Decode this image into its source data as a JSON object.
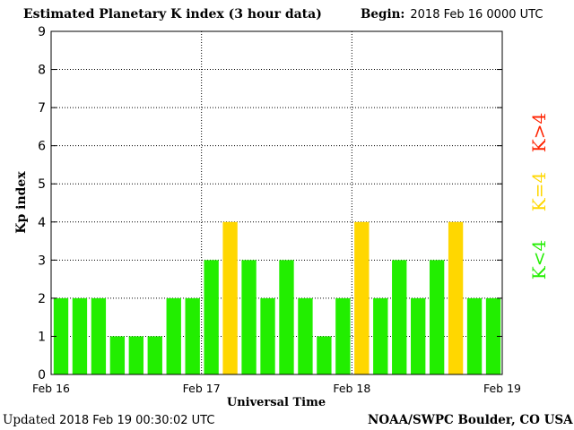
{
  "header": {
    "title": "Estimated Planetary K index (3 hour data)",
    "begin_label": "Begin:",
    "begin_value": "2018 Feb 16 0000 UTC"
  },
  "footer": {
    "updated_label": "Updated",
    "updated_value": "2018 Feb 19 00:30:02 UTC",
    "credit": "NOAA/SWPC Boulder, CO USA"
  },
  "legend": [
    {
      "label": "K>4",
      "color": "#ff2200"
    },
    {
      "label": "K=4",
      "color": "#ffd700"
    },
    {
      "label": "K<4",
      "color": "#22ee00"
    }
  ],
  "chart_data": {
    "type": "bar",
    "title": "Estimated Planetary K index (3 hour data)",
    "xlabel": "Universal Time",
    "ylabel": "Kp index",
    "ylim": [
      0,
      9
    ],
    "yticks": [
      "0",
      "1",
      "2",
      "3",
      "4",
      "5",
      "6",
      "7",
      "8",
      "9"
    ],
    "xticks": [
      "Feb 16",
      "Feb 17",
      "Feb 18",
      "Feb 19"
    ],
    "grid": true,
    "colors": {
      "below": "#22ee00",
      "equal": "#ffd700",
      "above": "#ff2200"
    },
    "values": [
      2,
      2,
      2,
      1,
      1,
      1,
      2,
      2,
      3,
      4,
      3,
      2,
      3,
      2,
      1,
      2,
      4,
      2,
      3,
      2,
      3,
      4,
      2,
      2
    ]
  }
}
